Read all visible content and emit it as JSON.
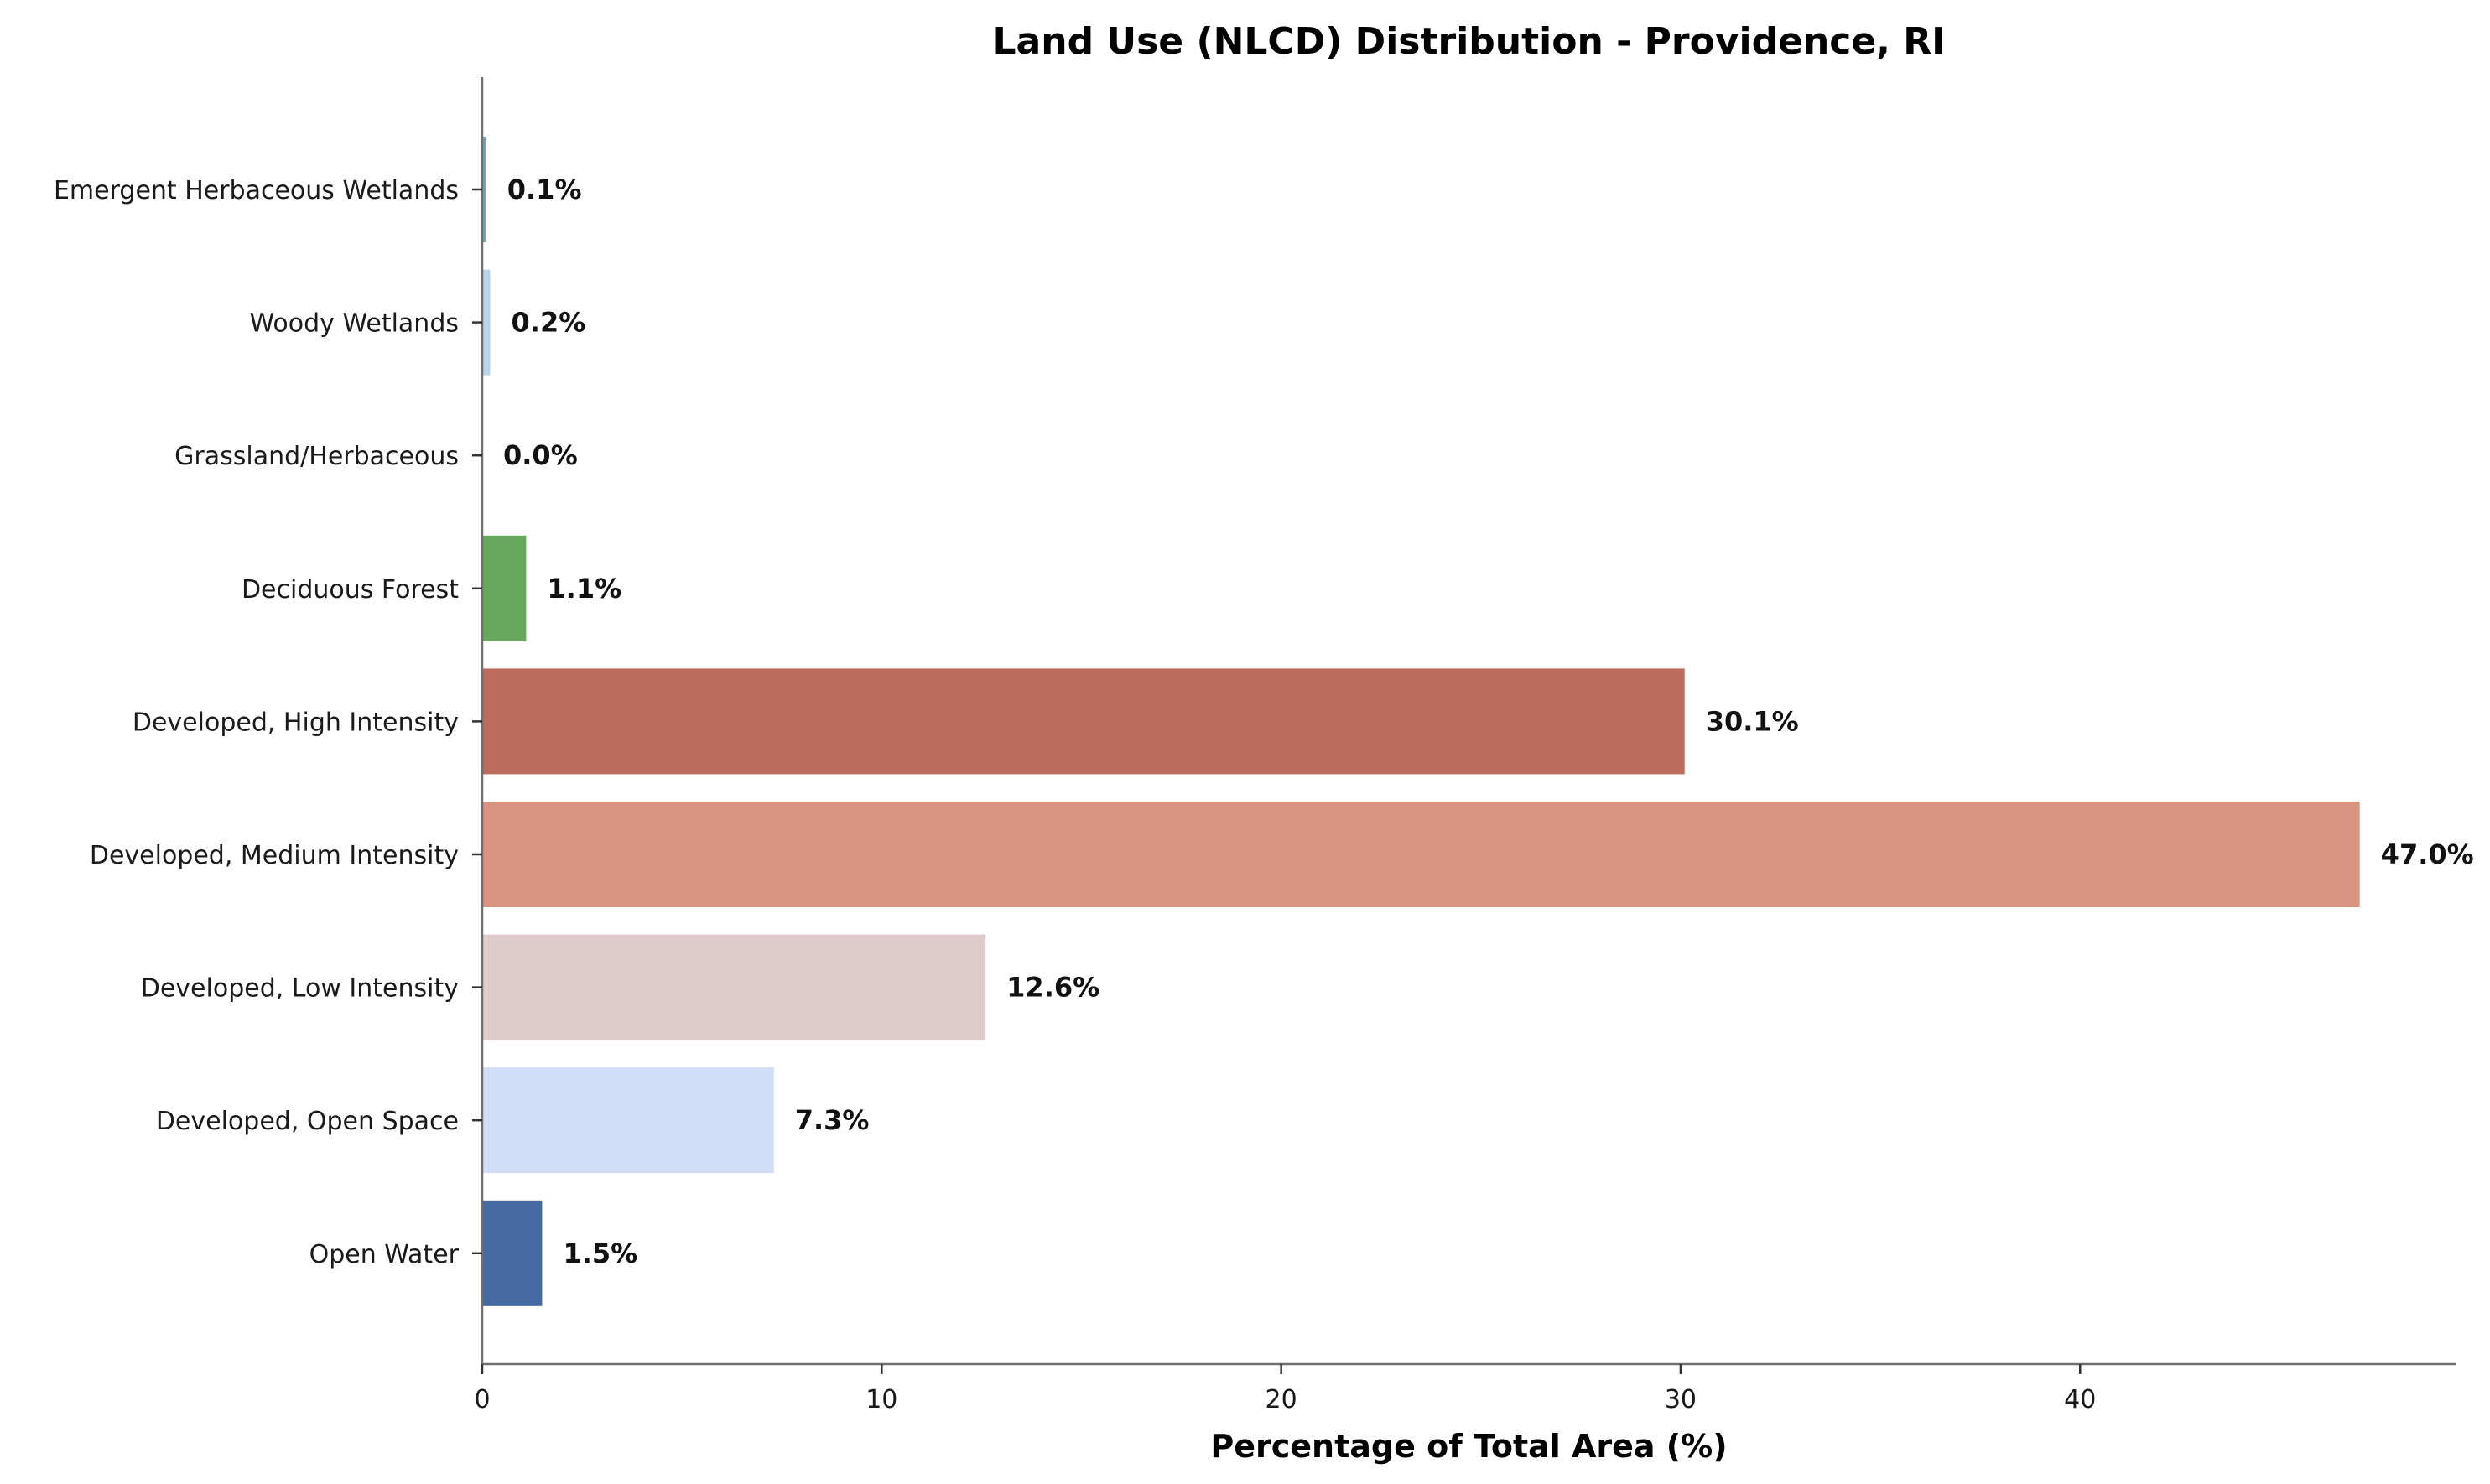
{
  "chart_data": {
    "type": "bar",
    "orientation": "horizontal",
    "title": "Land Use (NLCD) Distribution - Providence, RI",
    "xlabel": "Percentage of Total Area (%)",
    "ylabel": "",
    "xlim": [
      0,
      49.4
    ],
    "x_ticks": [
      0,
      10,
      20,
      30,
      40
    ],
    "grid": false,
    "legend": "none",
    "categories": [
      "Emergent Herbaceous Wetlands",
      "Woody Wetlands",
      "Grassland/Herbaceous",
      "Deciduous Forest",
      "Developed, High Intensity",
      "Developed, Medium Intensity",
      "Developed, Low Intensity",
      "Developed, Open Space",
      "Open Water"
    ],
    "values": [
      0.1,
      0.2,
      0.0,
      1.1,
      30.1,
      47.0,
      12.6,
      7.3,
      1.5
    ],
    "value_labels": [
      "0.1%",
      "0.2%",
      "0.0%",
      "1.1%",
      "30.1%",
      "47.0%",
      "12.6%",
      "7.3%",
      "1.5%"
    ],
    "colors": [
      "#6fa7b6",
      "#b9d3ea",
      "#e4e2c2",
      "#68a85e",
      "#bd6b5d",
      "#d89481",
      "#dfcbcb",
      "#d0ddf6",
      "#476aa1"
    ]
  }
}
